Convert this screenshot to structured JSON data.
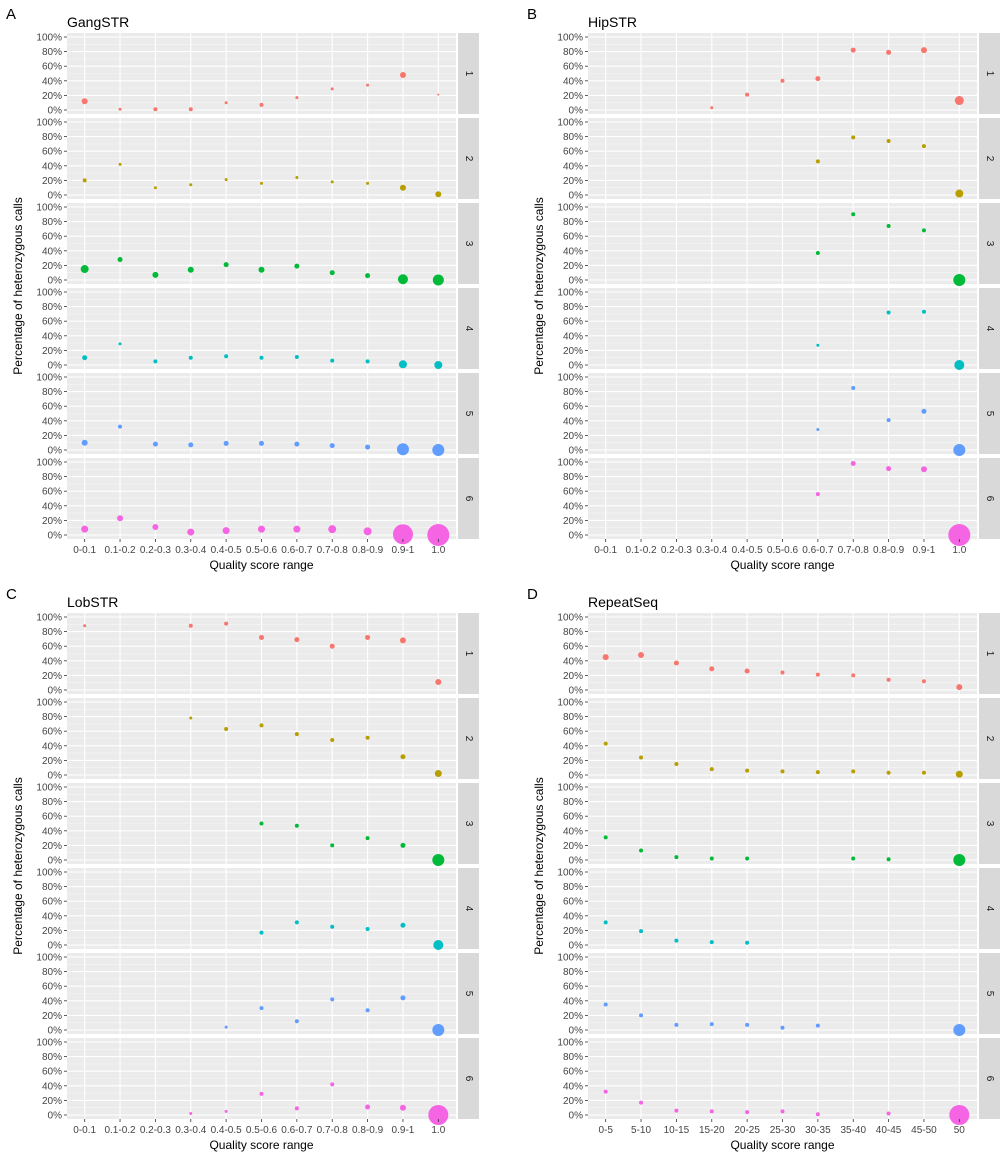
{
  "figure": {
    "panel_letters": [
      "A",
      "B",
      "C",
      "D"
    ]
  },
  "chart_data": [
    {
      "type": "scatter",
      "panel": "A",
      "title": "GangSTR",
      "xlabel": "Quality score range",
      "ylabel": "Percentage of heterozygous calls",
      "ylim": [
        0,
        100
      ],
      "y_ticks": [
        "0%",
        "20%",
        "40%",
        "60%",
        "80%",
        "100%"
      ],
      "categories": [
        "0-0.1",
        "0.1-0.2",
        "0.2-0.3",
        "0.3-0.4",
        "0.4-0.5",
        "0.5-0.6",
        "0.6-0.7",
        "0.7-0.8",
        "0.8-0.9",
        "0.9-1",
        "1.0"
      ],
      "facet_labels": [
        "1",
        "2",
        "3",
        "4",
        "5",
        "6"
      ],
      "grid": true,
      "colors": [
        "#F8766D",
        "#B79F00",
        "#00BA38",
        "#00BFC4",
        "#619CFF",
        "#F564E3"
      ],
      "series": [
        {
          "facet": "1",
          "values": [
            12,
            1,
            1,
            1,
            10,
            7,
            17,
            29,
            34,
            48,
            21
          ],
          "sizes": [
            3,
            1.5,
            2,
            2,
            1.5,
            2,
            1.5,
            1.5,
            1.5,
            3,
            1
          ]
        },
        {
          "facet": "2",
          "values": [
            20,
            42,
            10,
            14,
            21,
            16,
            24,
            18,
            16,
            10,
            1
          ],
          "sizes": [
            2,
            1.5,
            1.5,
            1.5,
            1.5,
            1.5,
            1.5,
            1.5,
            1.5,
            3,
            3
          ]
        },
        {
          "facet": "3",
          "values": [
            15,
            28,
            7,
            14,
            21,
            14,
            19,
            10,
            6,
            1,
            0
          ],
          "sizes": [
            4,
            2.5,
            3,
            3,
            2.5,
            3,
            2.5,
            2.5,
            2.5,
            5,
            5.5
          ]
        },
        {
          "facet": "4",
          "values": [
            10,
            29,
            5,
            10,
            12,
            10,
            11,
            6,
            5,
            1,
            0
          ],
          "sizes": [
            2.5,
            1.5,
            2,
            2,
            2,
            2,
            2,
            2,
            2,
            4,
            4
          ]
        },
        {
          "facet": "5",
          "values": [
            10,
            32,
            8,
            7,
            9,
            9,
            8,
            6,
            4,
            1,
            0
          ],
          "sizes": [
            3,
            2,
            2.5,
            2.5,
            2.5,
            2.5,
            2.5,
            2.5,
            2.5,
            6,
            6
          ]
        },
        {
          "facet": "6",
          "values": [
            8,
            23,
            11,
            4,
            6,
            8,
            8,
            8,
            5,
            1,
            0
          ],
          "sizes": [
            3.5,
            3,
            3,
            3.5,
            3.5,
            3.5,
            3.5,
            4,
            4,
            10,
            11
          ]
        }
      ]
    },
    {
      "type": "scatter",
      "panel": "B",
      "title": "HipSTR",
      "xlabel": "Quality score range",
      "ylabel": "Percentage of heterozygous calls",
      "ylim": [
        0,
        100
      ],
      "y_ticks": [
        "0%",
        "20%",
        "40%",
        "60%",
        "80%",
        "100%"
      ],
      "categories": [
        "0-0.1",
        "0.1-0.2",
        "0.2-0.3",
        "0.3-0.4",
        "0.4-0.5",
        "0.5-0.6",
        "0.6-0.7",
        "0.7-0.8",
        "0.8-0.9",
        "0.9-1",
        "1.0"
      ],
      "facet_labels": [
        "1",
        "2",
        "3",
        "4",
        "5",
        "6"
      ],
      "grid": true,
      "colors": [
        "#F8766D",
        "#B79F00",
        "#00BA38",
        "#00BFC4",
        "#619CFF",
        "#F564E3"
      ],
      "series": [
        {
          "facet": "1",
          "values": [
            null,
            null,
            null,
            3,
            21,
            40,
            43,
            82,
            79,
            82,
            13
          ],
          "sizes": [
            0,
            0,
            0,
            1.5,
            2,
            2,
            2.5,
            2.5,
            2.5,
            3,
            4.5
          ]
        },
        {
          "facet": "2",
          "values": [
            null,
            null,
            null,
            null,
            null,
            null,
            46,
            79,
            74,
            67,
            2
          ],
          "sizes": [
            0,
            0,
            0,
            0,
            0,
            0,
            2,
            2,
            2,
            2,
            4
          ]
        },
        {
          "facet": "3",
          "values": [
            null,
            null,
            null,
            null,
            null,
            null,
            37,
            90,
            74,
            68,
            0
          ],
          "sizes": [
            0,
            0,
            0,
            0,
            0,
            0,
            2,
            2,
            2,
            2,
            6
          ]
        },
        {
          "facet": "4",
          "values": [
            null,
            null,
            null,
            null,
            null,
            null,
            27,
            null,
            72,
            73,
            0
          ],
          "sizes": [
            0,
            0,
            0,
            0,
            0,
            0,
            1.5,
            0,
            2,
            2,
            5
          ]
        },
        {
          "facet": "5",
          "values": [
            null,
            null,
            null,
            null,
            null,
            null,
            28,
            85,
            41,
            53,
            0
          ],
          "sizes": [
            0,
            0,
            0,
            0,
            0,
            0,
            1.5,
            2,
            2,
            2.5,
            6
          ]
        },
        {
          "facet": "6",
          "values": [
            null,
            null,
            null,
            null,
            null,
            null,
            56,
            98,
            91,
            90,
            0
          ],
          "sizes": [
            0,
            0,
            0,
            0,
            0,
            0,
            2,
            2.5,
            2.5,
            3,
            11
          ]
        }
      ]
    },
    {
      "type": "scatter",
      "panel": "C",
      "title": "LobSTR",
      "xlabel": "Quality score range",
      "ylabel": "Percentage of heterozygous calls",
      "ylim": [
        0,
        100
      ],
      "y_ticks": [
        "0%",
        "20%",
        "40%",
        "60%",
        "80%",
        "100%"
      ],
      "categories": [
        "0-0.1",
        "0.1-0.2",
        "0.2-0.3",
        "0.3-0.4",
        "0.4-0.5",
        "0.5-0.6",
        "0.6-0.7",
        "0.7-0.8",
        "0.8-0.9",
        "0.9-1",
        "1.0"
      ],
      "facet_labels": [
        "1",
        "2",
        "3",
        "4",
        "5",
        "6"
      ],
      "grid": true,
      "colors": [
        "#F8766D",
        "#B79F00",
        "#00BA38",
        "#00BFC4",
        "#619CFF",
        "#F564E3"
      ],
      "series": [
        {
          "facet": "1",
          "values": [
            88,
            null,
            null,
            88,
            91,
            72,
            69,
            60,
            72,
            68,
            11
          ],
          "sizes": [
            1.5,
            0,
            0,
            2,
            2,
            2.5,
            2.5,
            2.5,
            2.5,
            3,
            3
          ]
        },
        {
          "facet": "2",
          "values": [
            null,
            null,
            null,
            78,
            63,
            68,
            56,
            48,
            51,
            25,
            2
          ],
          "sizes": [
            0,
            0,
            0,
            1.5,
            2,
            2,
            2,
            2,
            2,
            2.5,
            3.5
          ]
        },
        {
          "facet": "3",
          "values": [
            null,
            null,
            null,
            null,
            null,
            50,
            47,
            20,
            30,
            20,
            0
          ],
          "sizes": [
            0,
            0,
            0,
            0,
            0,
            2,
            2,
            2,
            2,
            2.5,
            6
          ]
        },
        {
          "facet": "4",
          "values": [
            null,
            null,
            null,
            null,
            null,
            17,
            31,
            25,
            22,
            27,
            0
          ],
          "sizes": [
            0,
            0,
            0,
            0,
            0,
            2,
            2,
            2,
            2,
            2.5,
            5
          ]
        },
        {
          "facet": "5",
          "values": [
            null,
            null,
            null,
            null,
            4,
            30,
            12,
            42,
            27,
            44,
            0
          ],
          "sizes": [
            0,
            0,
            0,
            0,
            1.5,
            2,
            2,
            2,
            2,
            2.5,
            6
          ]
        },
        {
          "facet": "6",
          "values": [
            null,
            null,
            null,
            2,
            5,
            29,
            9,
            42,
            11,
            10,
            0
          ],
          "sizes": [
            0,
            0,
            0,
            1.5,
            1.5,
            2,
            2,
            2,
            2.5,
            3,
            10
          ]
        }
      ]
    },
    {
      "type": "scatter",
      "panel": "D",
      "title": "RepeatSeq",
      "xlabel": "Quality score range",
      "ylabel": "Percentage of heterozygous calls",
      "ylim": [
        0,
        100
      ],
      "y_ticks": [
        "0%",
        "20%",
        "40%",
        "60%",
        "80%",
        "100%"
      ],
      "categories": [
        "0-5",
        "5-10",
        "10-15",
        "15-20",
        "20-25",
        "25-30",
        "30-35",
        "35-40",
        "40-45",
        "45-50",
        "50"
      ],
      "facet_labels": [
        "1",
        "2",
        "3",
        "4",
        "5",
        "6"
      ],
      "grid": true,
      "colors": [
        "#F8766D",
        "#B79F00",
        "#00BA38",
        "#00BFC4",
        "#619CFF",
        "#F564E3"
      ],
      "series": [
        {
          "facet": "1",
          "values": [
            45,
            48,
            37,
            29,
            26,
            24,
            21,
            20,
            14,
            12,
            4
          ],
          "sizes": [
            3,
            3,
            2.5,
            2.5,
            2.5,
            2,
            2,
            2,
            2,
            2,
            3
          ]
        },
        {
          "facet": "2",
          "values": [
            43,
            24,
            15,
            8,
            6,
            5,
            4,
            5,
            3,
            3,
            1
          ],
          "sizes": [
            2,
            2,
            2,
            2,
            2,
            2,
            2,
            2,
            2,
            2,
            3.5
          ]
        },
        {
          "facet": "3",
          "values": [
            31,
            13,
            4,
            2,
            2,
            null,
            null,
            2,
            1,
            null,
            0
          ],
          "sizes": [
            2,
            2,
            2,
            2,
            2,
            0,
            0,
            2,
            2,
            0,
            6
          ]
        },
        {
          "facet": "4",
          "values": [
            31,
            19,
            6,
            4,
            3,
            null,
            null,
            null,
            null,
            null,
            null
          ],
          "sizes": [
            2,
            2,
            2,
            2,
            2,
            0,
            0,
            0,
            0,
            0,
            0
          ]
        },
        {
          "facet": "5",
          "values": [
            35,
            20,
            7,
            8,
            7,
            3,
            6,
            null,
            null,
            null,
            0
          ],
          "sizes": [
            2,
            2,
            2,
            2,
            2,
            2,
            2,
            0,
            0,
            0,
            6
          ]
        },
        {
          "facet": "6",
          "values": [
            32,
            17,
            6,
            5,
            4,
            5,
            1,
            null,
            2,
            null,
            0
          ],
          "sizes": [
            2,
            2,
            2,
            2,
            2,
            2,
            2,
            0,
            2,
            0,
            10
          ]
        }
      ]
    }
  ]
}
